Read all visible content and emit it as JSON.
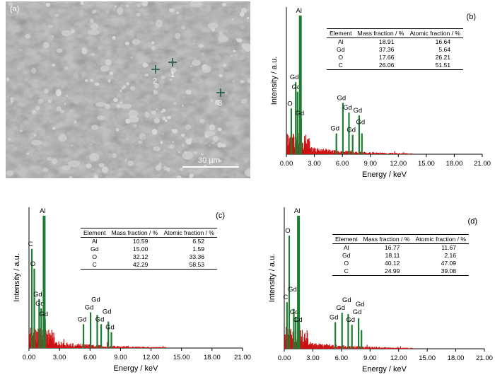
{
  "sem_image": {
    "panel_label": "(a)",
    "scale_bar_label": "30 µm",
    "markers": [
      {
        "label": "1"
      },
      {
        "label": "2"
      },
      {
        "label": "3"
      }
    ]
  },
  "table_headers": [
    "Element",
    "Mass fraction / %",
    "Atomic fraction / %"
  ],
  "chart_data": [
    {
      "type": "bar",
      "panel_label": "(b)",
      "xlabel": "Energy / keV",
      "ylabel": "Intensity / a.u.",
      "xlim": [
        0,
        21
      ],
      "xticks": [
        "0.00",
        "3.00",
        "6.00",
        "9.00",
        "12.00",
        "15.00",
        "18.00",
        "21.00"
      ],
      "peaks": [
        {
          "label": "O",
          "energy": 0.52,
          "height": 0.33
        },
        {
          "label": "Gd",
          "energy": 1.0,
          "height": 0.52
        },
        {
          "label": "Gd",
          "energy": 1.2,
          "height": 0.45
        },
        {
          "label": "Al",
          "energy": 1.49,
          "height": 1.0
        },
        {
          "label": "Gd",
          "energy": 1.58,
          "height": 0.26
        },
        {
          "label": "Gd",
          "energy": 5.36,
          "height": 0.15
        },
        {
          "label": "Gd",
          "energy": 6.06,
          "height": 0.37
        },
        {
          "label": "Gd",
          "energy": 6.71,
          "height": 0.3
        },
        {
          "label": "Gd",
          "energy": 7.1,
          "height": 0.14
        },
        {
          "label": "Gd",
          "energy": 7.8,
          "height": 0.28
        },
        {
          "label": "Gd",
          "energy": 8.1,
          "height": 0.15
        }
      ],
      "table": [
        {
          "element": "Al",
          "mass": "18.91",
          "atomic": "16.64"
        },
        {
          "element": "Gd",
          "mass": "37.36",
          "atomic": "5.64"
        },
        {
          "element": "O",
          "mass": "17.66",
          "atomic": "26.21"
        },
        {
          "element": "C",
          "mass": "26.06",
          "atomic": "51.51"
        }
      ]
    },
    {
      "type": "bar",
      "panel_label": "(c)",
      "xlabel": "Energy / keV",
      "ylabel": "Intensity / a.u.",
      "xlim": [
        0,
        21
      ],
      "xticks": [
        "0.00",
        "3.00",
        "6.00",
        "9.00",
        "12.00",
        "15.00",
        "18.00",
        "21.00"
      ],
      "peaks": [
        {
          "label": "C",
          "energy": 0.28,
          "height": 0.75
        },
        {
          "label": "O",
          "energy": 0.52,
          "height": 0.6
        },
        {
          "label": "Gd",
          "energy": 1.0,
          "height": 0.37
        },
        {
          "label": "Gd",
          "energy": 1.2,
          "height": 0.3
        },
        {
          "label": "Al",
          "energy": 1.49,
          "height": 1.0
        },
        {
          "label": "Gd",
          "energy": 1.58,
          "height": 0.22
        },
        {
          "label": "Gd",
          "energy": 5.36,
          "height": 0.18
        },
        {
          "label": "Gd",
          "energy": 6.06,
          "height": 0.27
        },
        {
          "label": "Gd",
          "energy": 6.71,
          "height": 0.25
        },
        {
          "label": "Gd",
          "energy": 7.1,
          "height": 0.18
        },
        {
          "label": "Gd",
          "energy": 7.8,
          "height": 0.2
        },
        {
          "label": "Gd",
          "energy": 8.1,
          "height": 0.12
        }
      ],
      "table": [
        {
          "element": "Al",
          "mass": "10.59",
          "atomic": "6.52"
        },
        {
          "element": "Gd",
          "mass": "15.00",
          "atomic": "1.59"
        },
        {
          "element": "O",
          "mass": "32.12",
          "atomic": "33.36"
        },
        {
          "element": "C",
          "mass": "42.29",
          "atomic": "58.53"
        }
      ]
    },
    {
      "type": "bar",
      "panel_label": "(d)",
      "xlabel": "Energy / keV",
      "ylabel": "Intensity / a.u.",
      "xlim": [
        0,
        21
      ],
      "xticks": [
        "0.00",
        "3.00",
        "6.00",
        "9.00",
        "12.00",
        "15.00",
        "18.00",
        "21.00"
      ],
      "peaks": [
        {
          "label": "C",
          "energy": 0.28,
          "height": 0.35
        },
        {
          "label": "O",
          "energy": 0.52,
          "height": 0.85
        },
        {
          "label": "Gd",
          "energy": 1.0,
          "height": 0.3
        },
        {
          "label": "Gd",
          "energy": 1.2,
          "height": 0.24
        },
        {
          "label": "Al",
          "energy": 1.49,
          "height": 1.0
        },
        {
          "label": "Gd",
          "energy": 1.58,
          "height": 0.18
        },
        {
          "label": "Gd",
          "energy": 5.36,
          "height": 0.2
        },
        {
          "label": "Gd",
          "energy": 6.06,
          "height": 0.27
        },
        {
          "label": "Gd",
          "energy": 6.71,
          "height": 0.26
        },
        {
          "label": "Gd",
          "energy": 7.1,
          "height": 0.18
        },
        {
          "label": "Gd",
          "energy": 7.8,
          "height": 0.23
        },
        {
          "label": "Gd",
          "energy": 8.1,
          "height": 0.14
        }
      ],
      "table": [
        {
          "element": "Al",
          "mass": "16.77",
          "atomic": "11.67"
        },
        {
          "element": "Gd",
          "mass": "18.11",
          "atomic": "2.16"
        },
        {
          "element": "O",
          "mass": "40.12",
          "atomic": "47.09"
        },
        {
          "element": "C",
          "mass": "24.99",
          "atomic": "39.08"
        }
      ]
    }
  ],
  "colors": {
    "sem_background": "#8f8f8f",
    "noise": "#cc1111",
    "peak": "#1e7d32",
    "marker_line": "#5b5fbf",
    "sem_marker": "#1a5a4a"
  }
}
